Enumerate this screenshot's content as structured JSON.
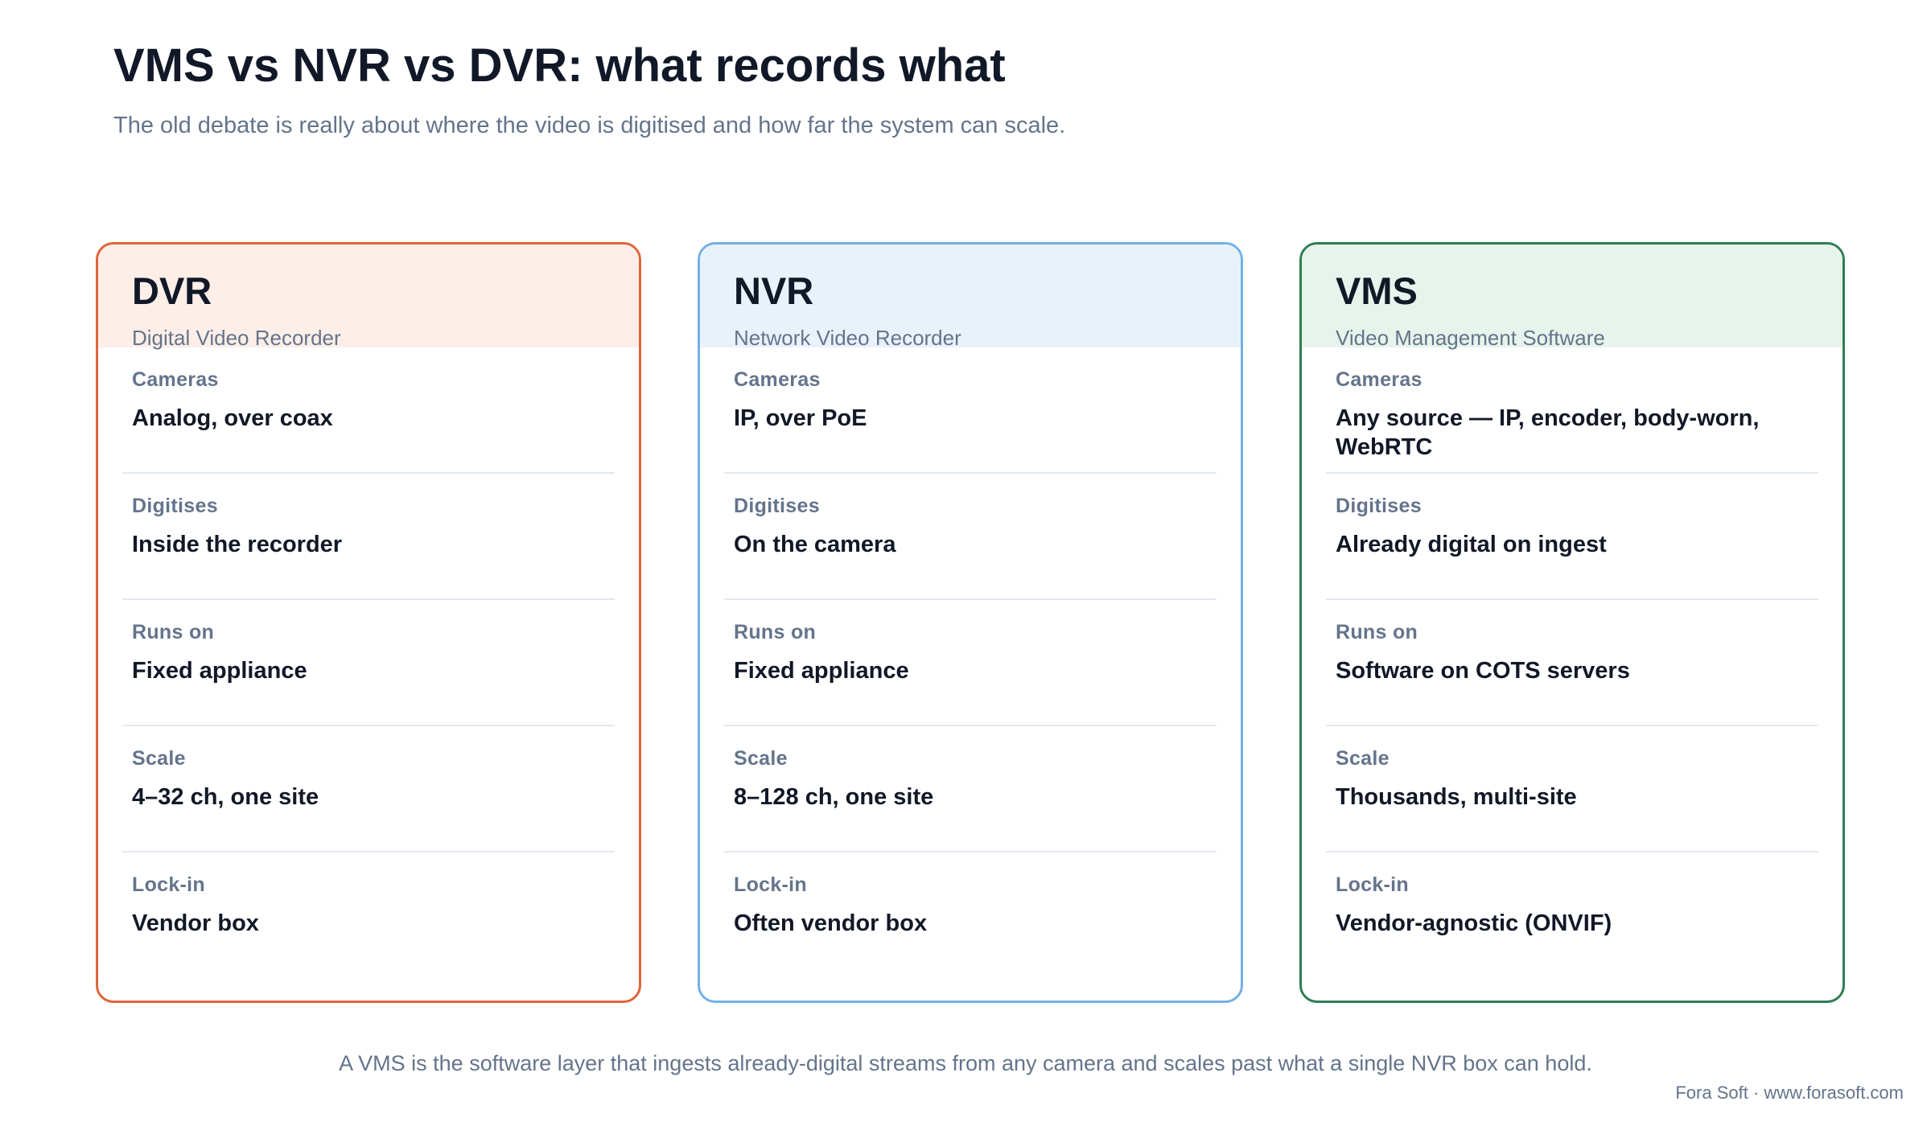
{
  "title": "VMS vs NVR vs DVR: what records what",
  "subtitle": "The old debate is really about where the video is digitised and how far the system can scale.",
  "cards": [
    {
      "name": "DVR",
      "full_name": "Digital Video Recorder",
      "accent_color": "#e0643a",
      "header_bg": "#fdeee7",
      "rows": [
        {
          "label": "Cameras",
          "value": "Analog, over coax"
        },
        {
          "label": "Digitises",
          "value": "Inside the recorder"
        },
        {
          "label": "Runs on",
          "value": "Fixed appliance"
        },
        {
          "label": "Scale",
          "value": "4–32 ch, one site"
        },
        {
          "label": "Lock-in",
          "value": "Vendor box"
        }
      ]
    },
    {
      "name": "NVR",
      "full_name": "Network Video Recorder",
      "accent_color": "#74b0e6",
      "header_bg": "#e9f2fb",
      "rows": [
        {
          "label": "Cameras",
          "value": "IP, over PoE"
        },
        {
          "label": "Digitises",
          "value": "On the camera"
        },
        {
          "label": "Runs on",
          "value": "Fixed appliance"
        },
        {
          "label": "Scale",
          "value": "8–128 ch, one site"
        },
        {
          "label": "Lock-in",
          "value": "Often vendor box"
        }
      ]
    },
    {
      "name": "VMS",
      "full_name": "Video Management Software",
      "accent_color": "#2e7d52",
      "header_bg": "#e6f4ec",
      "rows": [
        {
          "label": "Cameras",
          "value": "Any source — IP, encoder, body-worn, WebRTC"
        },
        {
          "label": "Digitises",
          "value": "Already digital on ingest"
        },
        {
          "label": "Runs on",
          "value": "Software on COTS servers"
        },
        {
          "label": "Scale",
          "value": "Thousands, multi-site"
        },
        {
          "label": "Lock-in",
          "value": "Vendor-agnostic (ONVIF)"
        }
      ]
    }
  ],
  "footnote": "A VMS is the software layer that ingests already-digital streams from any camera and scales past what a single NVR box can hold.",
  "credit": "Fora Soft · www.forasoft.com"
}
